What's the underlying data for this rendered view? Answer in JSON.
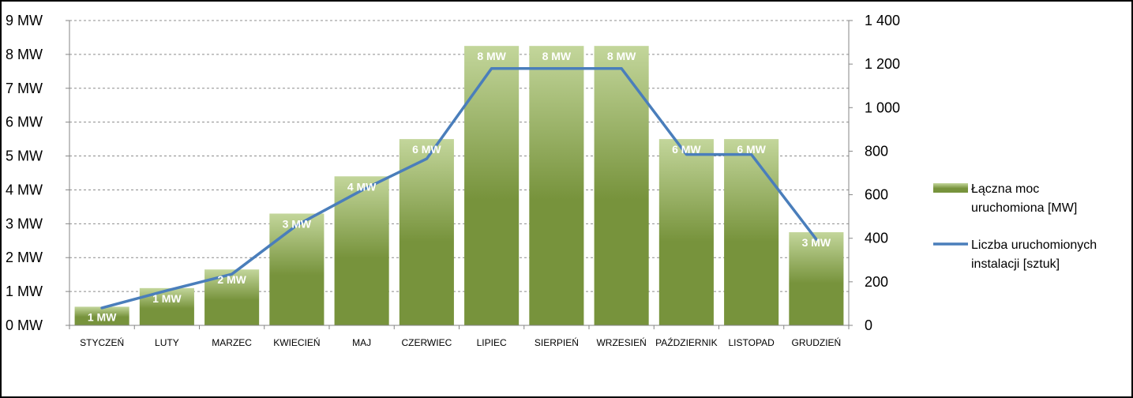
{
  "chart_data": {
    "type": "bar",
    "categories": [
      "STYCZEŃ",
      "LUTY",
      "MARZEC",
      "KWIECIEŃ",
      "MAJ",
      "CZERWIEC",
      "LIPIEC",
      "SIERPIEŃ",
      "WRZESIEŃ",
      "PAŹDZIERNIK",
      "LISTOPAD",
      "GRUDZIEŃ"
    ],
    "series": [
      {
        "name": "Łączna moc uruchomiona [MW]",
        "name_lines": [
          "Łączna moc",
          "uruchomiona [MW]"
        ],
        "type": "bar",
        "axis": "left",
        "values": [
          0.55,
          1.1,
          1.65,
          3.3,
          4.4,
          5.5,
          8.25,
          8.25,
          8.25,
          5.5,
          5.5,
          2.75
        ],
        "data_labels": [
          "1 MW",
          "1 MW",
          "2 MW",
          "3 MW",
          "4 MW",
          "6 MW",
          "8 MW",
          "8 MW",
          "8 MW",
          "6 MW",
          "6 MW",
          "3 MW"
        ],
        "color_top": "#c3d69b",
        "color_bottom": "#77933c"
      },
      {
        "name": "Liczba uruchomionych instalacji [sztuk]",
        "name_lines": [
          "Liczba uruchomionych",
          "instalacji [sztuk]"
        ],
        "type": "line",
        "axis": "right",
        "values": [
          80,
          160,
          235,
          460,
          620,
          765,
          1180,
          1180,
          1180,
          785,
          785,
          395
        ],
        "color": "#4a7ebb"
      }
    ],
    "y_left": {
      "ylim": [
        0,
        9
      ],
      "ticks": [
        0,
        1,
        2,
        3,
        4,
        5,
        6,
        7,
        8,
        9
      ],
      "tick_labels": [
        "0 MW",
        "1 MW",
        "2 MW",
        "3 MW",
        "4 MW",
        "5 MW",
        "6 MW",
        "7 MW",
        "8 MW",
        "9 MW"
      ]
    },
    "y_right": {
      "ylim": [
        0,
        1400
      ],
      "ticks": [
        0,
        200,
        400,
        600,
        800,
        1000,
        1200,
        1400
      ],
      "tick_labels": [
        "0",
        "200",
        "400",
        "600",
        "800",
        "1 000",
        "1 200",
        "1 400"
      ]
    },
    "grid": true,
    "legend_position": "right"
  }
}
